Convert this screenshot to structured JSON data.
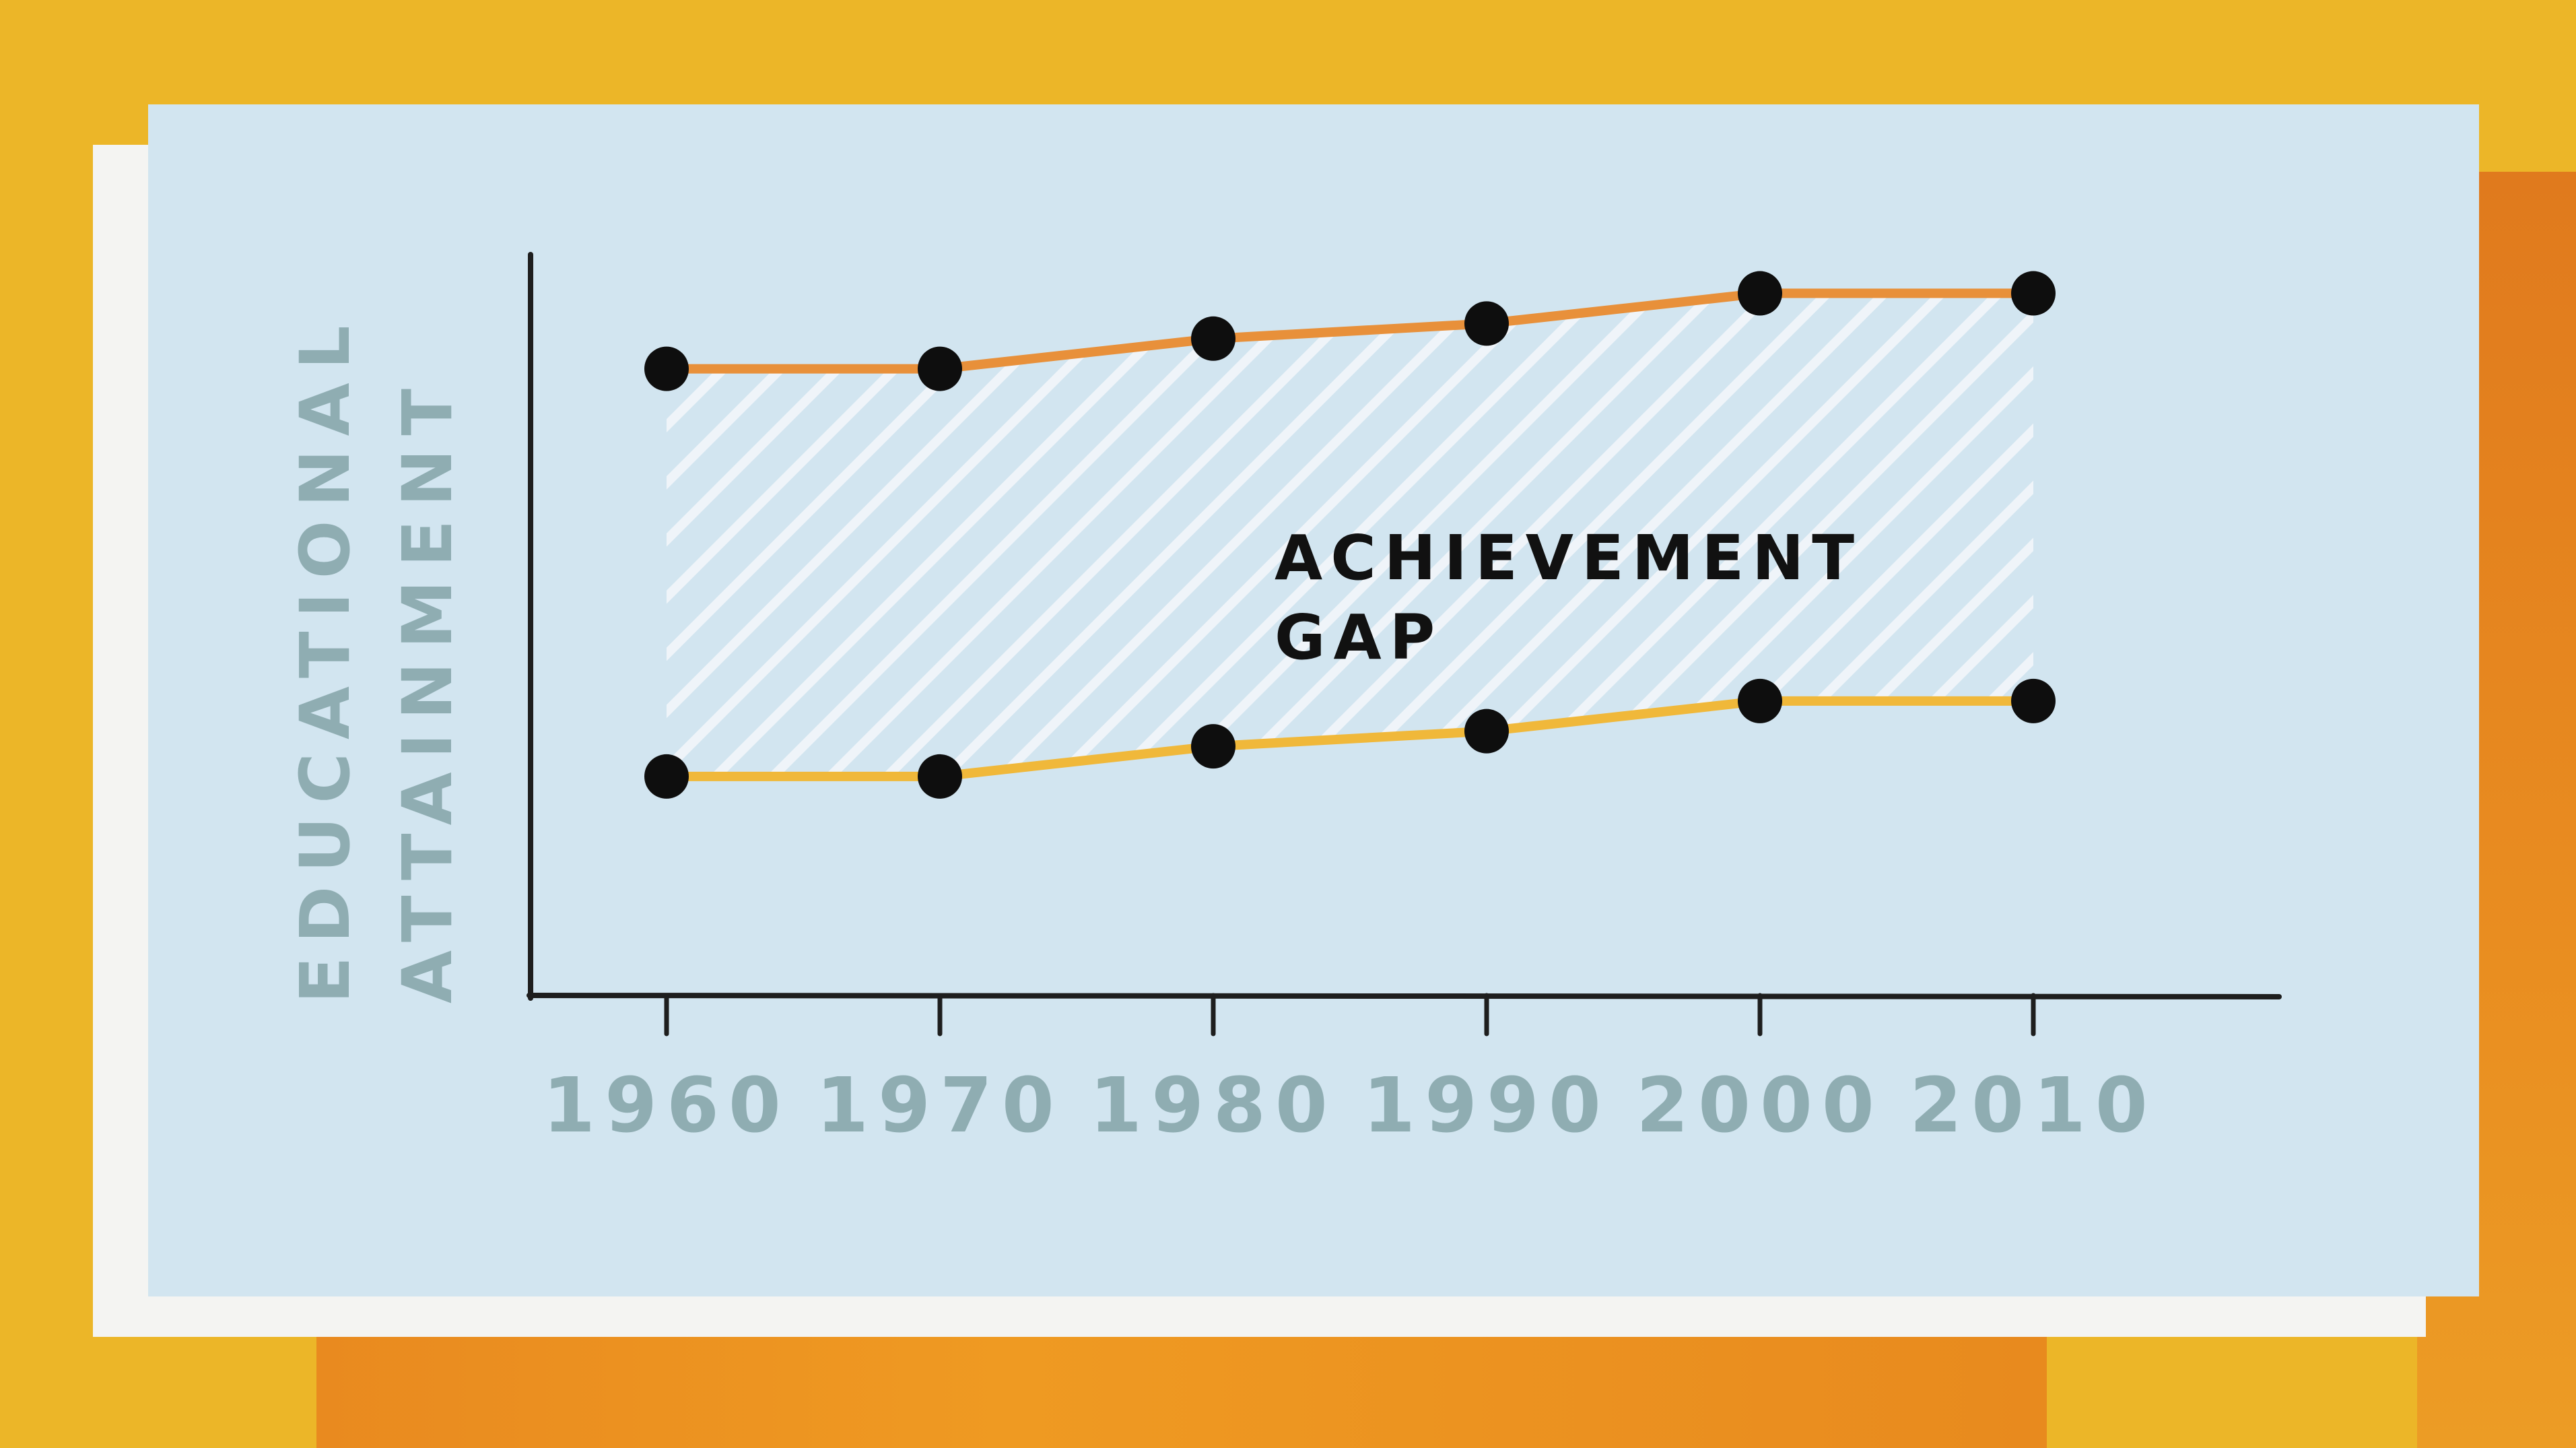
{
  "chart_data": {
    "type": "line",
    "ylabel_lines": [
      "EDUCATIONAL",
      "ATTAINMENT"
    ],
    "annotation_lines": [
      "ACHIEVEMENT",
      "GAP"
    ],
    "categories": [
      "1960",
      "1970",
      "1980",
      "1990",
      "2000",
      "2010"
    ],
    "series": [
      {
        "key": "upper",
        "color": "#e8903a",
        "values": [
          8.3,
          8.3,
          8.7,
          8.9,
          9.3,
          9.3
        ]
      },
      {
        "key": "lower",
        "color": "#f0b83a",
        "values": [
          2.9,
          2.9,
          3.3,
          3.5,
          3.9,
          3.9
        ]
      }
    ],
    "ylim": [
      0,
      11
    ],
    "grid": false,
    "colors": {
      "axis": "#1e1e1e",
      "tick_label": "#8fadb2",
      "y_label": "#8fadb2",
      "marker": "#0e0e0e",
      "hatch": "#f2f7fa",
      "annotation": "#111111"
    }
  }
}
